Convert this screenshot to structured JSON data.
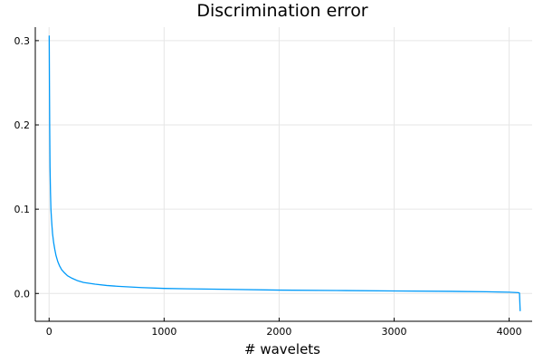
{
  "chart_data": {
    "type": "line",
    "title": "Discrimination error",
    "xlabel": "# wavelets",
    "ylabel": "",
    "xlim": [
      -120,
      4200
    ],
    "ylim": [
      -0.033,
      0.316
    ],
    "xticks": [
      0,
      1000,
      2000,
      3000,
      4000
    ],
    "xtick_labels": [
      "0",
      "1000",
      "2000",
      "3000",
      "4000"
    ],
    "yticks": [
      0.0,
      0.1,
      0.2,
      0.3
    ],
    "ytick_labels": [
      "0.0",
      "0.1",
      "0.2",
      "0.3"
    ],
    "grid": true,
    "legend": "none",
    "series": [
      {
        "color": "#009af9",
        "x": [
          1,
          3,
          5,
          8,
          12,
          16,
          20,
          25,
          30,
          40,
          50,
          60,
          75,
          90,
          110,
          130,
          160,
          200,
          250,
          300,
          400,
          500,
          600,
          800,
          1000,
          1200,
          1500,
          2000,
          2500,
          3000,
          3500,
          3800,
          4000,
          4080,
          4090,
          4096
        ],
        "y": [
          0.306,
          0.25,
          0.2,
          0.15,
          0.12,
          0.1,
          0.09,
          0.08,
          0.071,
          0.06,
          0.052,
          0.045,
          0.038,
          0.033,
          0.028,
          0.025,
          0.021,
          0.018,
          0.015,
          0.013,
          0.011,
          0.0095,
          0.0085,
          0.007,
          0.006,
          0.0055,
          0.005,
          0.004,
          0.0035,
          0.003,
          0.0025,
          0.002,
          0.0015,
          0.001,
          0.0005,
          -0.021
        ]
      }
    ]
  }
}
